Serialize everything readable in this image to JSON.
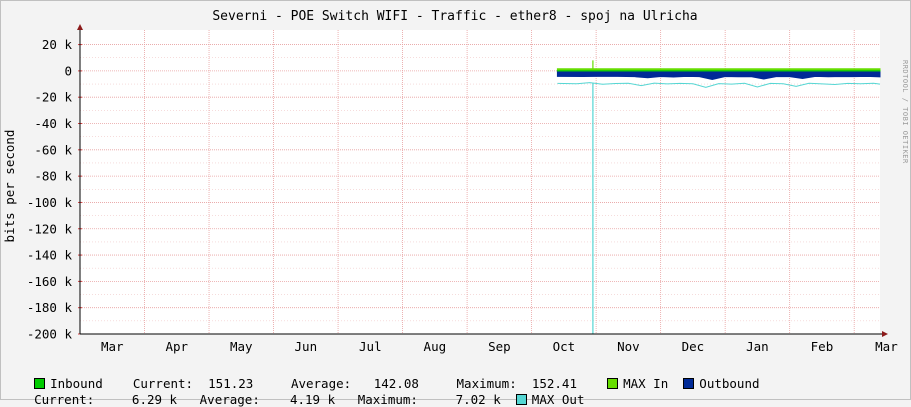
{
  "title": "Severni - POE Switch WIFI - Traffic - ether8 - spoj na Ulricha",
  "watermark": "RRDTOOL / TOBI OETIKER",
  "colors": {
    "background": "#f3f3f3",
    "plot": "#ffffff",
    "grid": "#e8a0a0",
    "inbound": "#00cc00",
    "max_in": "#66dd00",
    "outbound": "#002a97",
    "max_out": "#55d6d3"
  },
  "chart_data": {
    "type": "area",
    "ylabel": "bits per second",
    "ylim": [
      -200000,
      25000
    ],
    "yticks": [
      {
        "v": 20000,
        "label": "20 k"
      },
      {
        "v": 0,
        "label": "0"
      },
      {
        "v": -20000,
        "label": "-20 k"
      },
      {
        "v": -40000,
        "label": "-40 k"
      },
      {
        "v": -60000,
        "label": "-60 k"
      },
      {
        "v": -80000,
        "label": "-80 k"
      },
      {
        "v": -100000,
        "label": "-100 k"
      },
      {
        "v": -120000,
        "label": "-120 k"
      },
      {
        "v": -140000,
        "label": "-140 k"
      },
      {
        "v": -160000,
        "label": "-160 k"
      },
      {
        "v": -180000,
        "label": "-180 k"
      },
      {
        "v": -200000,
        "label": "-200 k"
      }
    ],
    "xlim": [
      0,
      12.4
    ],
    "months": [
      "Mar",
      "Apr",
      "May",
      "Jun",
      "Jul",
      "Aug",
      "Sep",
      "Oct",
      "Nov",
      "Dec",
      "Jan",
      "Feb",
      "Mar"
    ],
    "grid": true,
    "series": [
      {
        "name": "Outbound",
        "color": "#002a97",
        "x": [
          7.4,
          7.8,
          8.2,
          8.6,
          8.8,
          9.0,
          9.2,
          9.4,
          9.6,
          9.8,
          10.0,
          10.2,
          10.4,
          10.6,
          10.8,
          11.0,
          11.2,
          11.4,
          11.6,
          11.8,
          12.0,
          12.2,
          12.4
        ],
        "values": [
          -4200,
          -4300,
          -4100,
          -4400,
          -5200,
          -4300,
          -4600,
          -4200,
          -4400,
          -6500,
          -4300,
          -4500,
          -4400,
          -6200,
          -4300,
          -4400,
          -5800,
          -4200,
          -4500,
          -4300,
          -4400,
          -4200,
          -4500
        ]
      },
      {
        "name": "MAX Out",
        "color": "#55d6d3",
        "x": [
          7.4,
          7.7,
          7.9,
          8.1,
          8.3,
          8.5,
          8.7,
          8.9,
          9.1,
          9.3,
          9.5,
          9.7,
          9.9,
          10.1,
          10.3,
          10.5,
          10.7,
          10.9,
          11.1,
          11.3,
          11.5,
          11.7,
          11.9,
          12.1,
          12.3,
          12.4
        ],
        "values": [
          -9500,
          -9800,
          -8900,
          -10200,
          -9600,
          -9400,
          -11200,
          -9300,
          -9900,
          -9500,
          -9800,
          -12500,
          -9700,
          -10100,
          -9400,
          -12200,
          -9500,
          -9800,
          -11800,
          -9400,
          -9900,
          -10300,
          -9500,
          -9800,
          -9400,
          -10100
        ]
      },
      {
        "name": "MAX In",
        "color": "#66dd00",
        "x": [
          7.4,
          12.4
        ],
        "values": [
          1600,
          1600
        ]
      },
      {
        "name": "Inbound",
        "color": "#00cc00",
        "x": [
          7.4,
          12.4
        ],
        "values": [
          150,
          150
        ]
      }
    ],
    "spikes": [
      {
        "series": "MAX Out",
        "x": 7.95,
        "value": -200000
      },
      {
        "series": "MAX In",
        "x": 7.95,
        "value": 8000
      }
    ]
  },
  "legend": {
    "row1": {
      "inbound_label": "Inbound",
      "current_label": "Current:",
      "current_value": "151.23",
      "average_label": "Average:",
      "average_value": "142.08",
      "maximum_label": "Maximum:",
      "maximum_value": "152.41",
      "max_in_label": "MAX In",
      "outbound_label": "Outbound"
    },
    "row2": {
      "current_label": "Current:",
      "current_value": "6.29 k",
      "average_label": "Average:",
      "average_value": "4.19 k",
      "maximum_label": "Maximum:",
      "maximum_value": "7.02 k",
      "max_out_label": "MAX Out"
    }
  }
}
